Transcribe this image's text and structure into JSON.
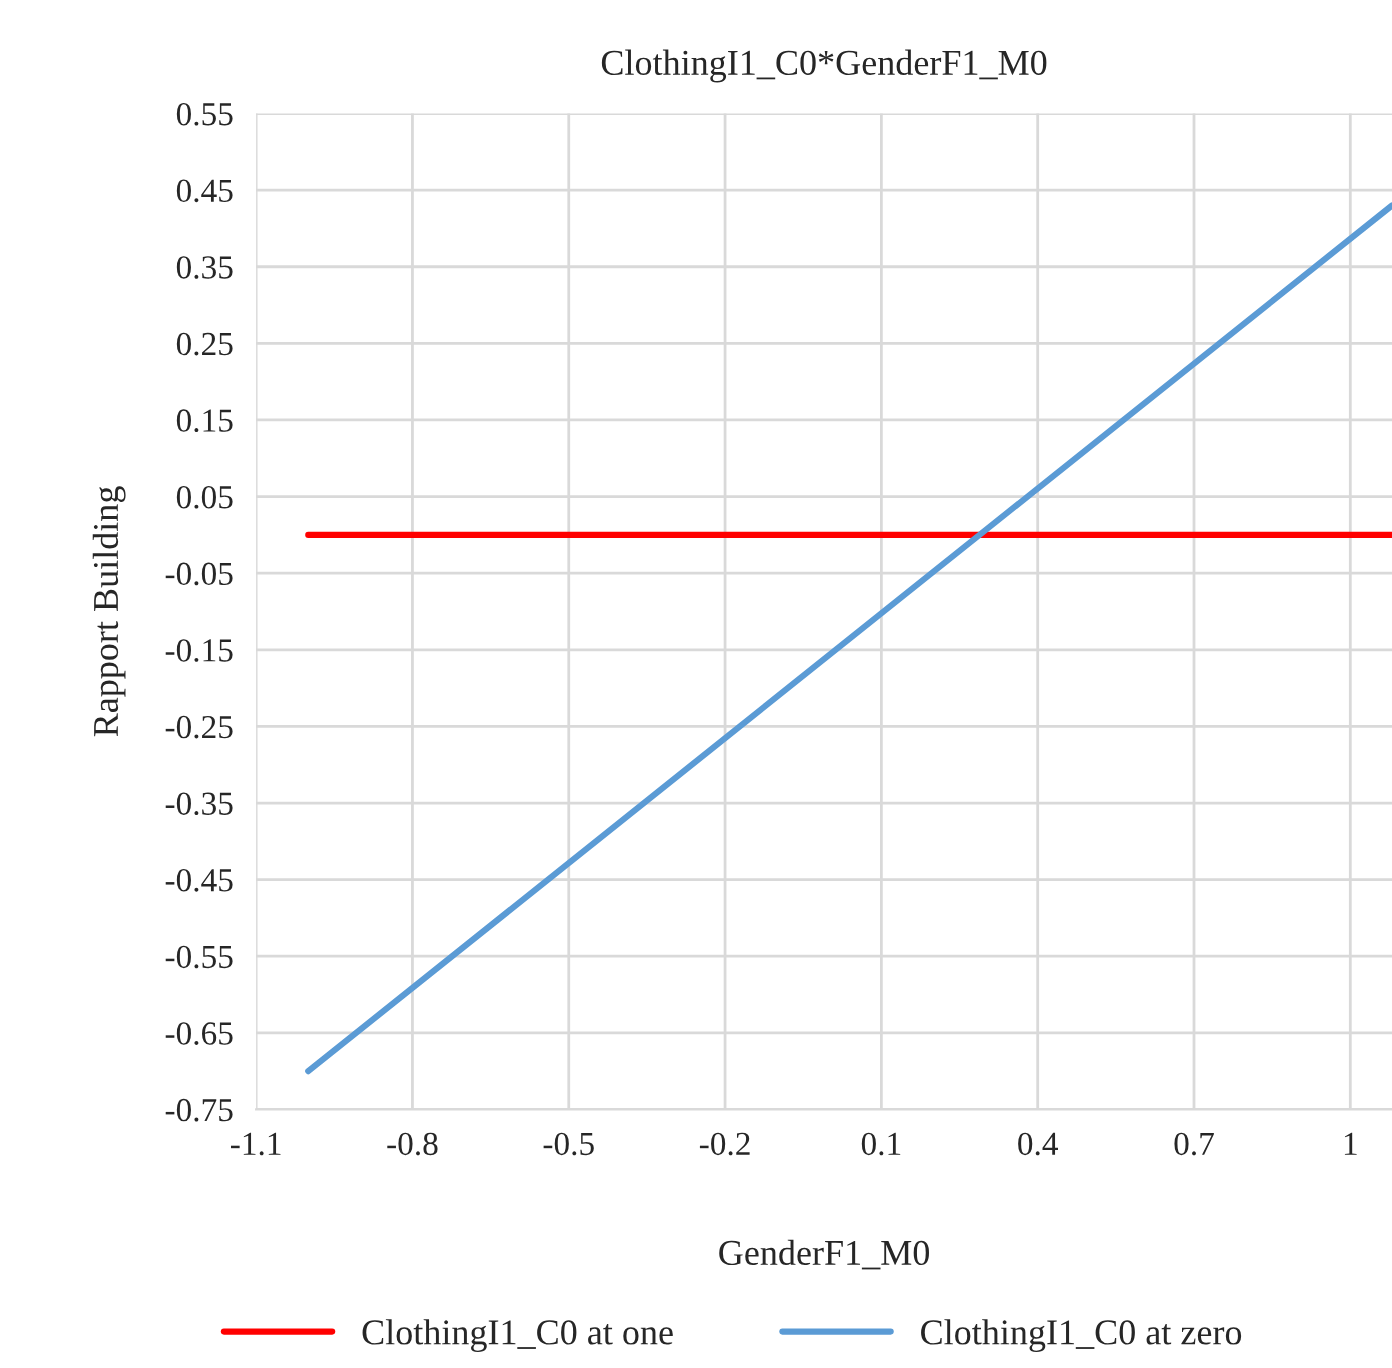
{
  "chart_data": {
    "type": "line",
    "title": "ClothingI1_C0*GenderF1_M0",
    "xlabel": "GenderF1_M0",
    "ylabel": "Rapport Building",
    "x": [
      -1,
      1.08
    ],
    "series": [
      {
        "name": "ClothingI1_C0 at one",
        "color": "#ff0000",
        "values": [
          0.0,
          0.0
        ]
      },
      {
        "name": "ClothingI1_C0 at zero",
        "color": "#5b9bd5",
        "values": [
          -0.7,
          0.43
        ]
      }
    ],
    "xlim": [
      -1.1,
      1.08
    ],
    "xticks": [
      -1.1,
      -0.8,
      -0.5,
      -0.2,
      0.1,
      0.4,
      0.7,
      1
    ],
    "ylim": [
      -0.75,
      0.55
    ],
    "yticks": [
      0.55,
      0.45,
      0.35,
      0.25,
      0.15,
      0.05,
      -0.05,
      -0.15,
      -0.25,
      -0.35,
      -0.45,
      -0.55,
      -0.65,
      -0.75
    ],
    "grid": true,
    "legend": "bottom",
    "marker": "none",
    "line_style": "solid"
  }
}
